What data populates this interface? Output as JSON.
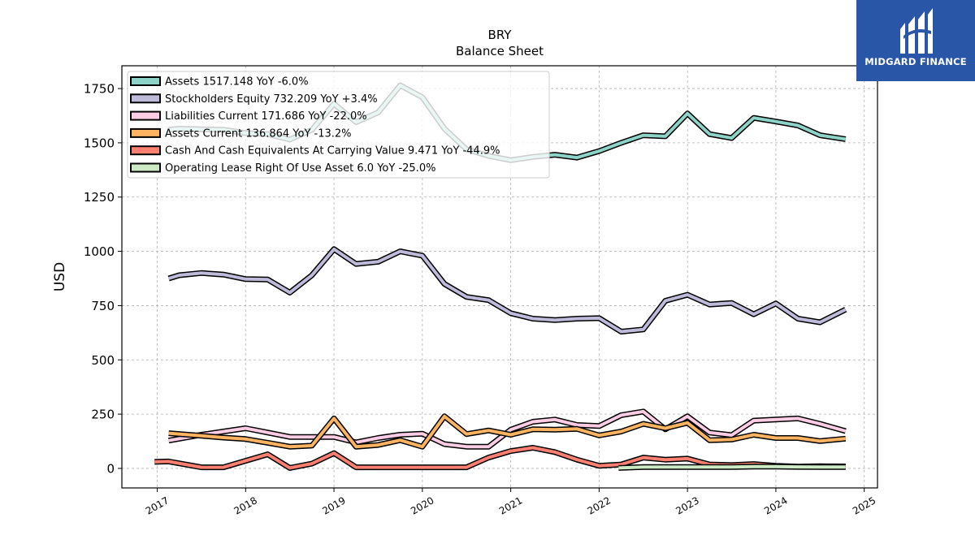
{
  "title": "BRY",
  "subtitle": "Balance  Sheet",
  "brand": {
    "name": "MIDGARD FINANCE",
    "color": "#2a56a8"
  },
  "chart_data": {
    "type": "line",
    "ylabel": "USD",
    "xlabel": "",
    "ylim": [
      -90,
      1855
    ],
    "xlim": [
      2016.6,
      2025.15
    ],
    "yticks": [
      0,
      250,
      500,
      750,
      1000,
      1250,
      1500,
      1750
    ],
    "xticks": [
      "2017",
      "2018",
      "2019",
      "2020",
      "2021",
      "2022",
      "2023",
      "2024",
      "2025"
    ],
    "grid": true,
    "legend_position": "top-left",
    "series": [
      {
        "name": "Assets",
        "legend": "Assets  1517.148 YoY -6.0%",
        "color": "#8dd3c7",
        "x": [
          2017.13,
          2017.25,
          2017.5,
          2017.75,
          2018.0,
          2018.25,
          2018.5,
          2018.75,
          2019.0,
          2019.25,
          2019.5,
          2019.75,
          2020.0,
          2020.25,
          2020.5,
          2020.75,
          2021.0,
          2021.25,
          2021.5,
          2021.75,
          2022.0,
          2022.25,
          2022.5,
          2022.75,
          2023.0,
          2023.25,
          2023.5,
          2023.75,
          2024.0,
          2024.25,
          2024.5,
          2024.79
        ],
        "y": [
          1560,
          1565,
          1562,
          1560,
          1545,
          1540,
          1515,
          1560,
          1680,
          1595,
          1640,
          1765,
          1710,
          1565,
          1470,
          1440,
          1420,
          1435,
          1445,
          1432,
          1462,
          1500,
          1535,
          1530,
          1635,
          1540,
          1522,
          1615,
          1598,
          1580,
          1535,
          1517
        ]
      },
      {
        "name": "Stockholders Equity",
        "legend": "Stockholders Equity  732.209 YoY +3.4%",
        "color": "#bebada",
        "x": [
          2017.13,
          2017.25,
          2017.5,
          2017.75,
          2018.0,
          2018.25,
          2018.5,
          2018.75,
          2019.0,
          2019.25,
          2019.5,
          2019.75,
          2020.0,
          2020.25,
          2020.5,
          2020.75,
          2021.0,
          2021.25,
          2021.5,
          2021.75,
          2022.0,
          2022.25,
          2022.5,
          2022.75,
          2023.0,
          2023.25,
          2023.5,
          2023.75,
          2024.0,
          2024.25,
          2024.5,
          2024.79
        ],
        "y": [
          875,
          890,
          900,
          893,
          872,
          870,
          810,
          890,
          1010,
          942,
          952,
          1000,
          980,
          850,
          790,
          775,
          715,
          690,
          683,
          690,
          692,
          630,
          640,
          772,
          800,
          755,
          762,
          710,
          760,
          690,
          673,
          732
        ]
      },
      {
        "name": "Liabilities Current",
        "legend": "Liabilities Current  171.686 YoY -22.0%",
        "color": "#fccde5",
        "x": [
          2017.13,
          2017.5,
          2017.75,
          2018.0,
          2018.25,
          2018.5,
          2018.75,
          2019.0,
          2019.25,
          2019.5,
          2019.75,
          2020.0,
          2020.25,
          2020.5,
          2020.75,
          2021.0,
          2021.25,
          2021.5,
          2021.75,
          2022.0,
          2022.25,
          2022.5,
          2022.75,
          2023.0,
          2023.25,
          2023.5,
          2023.75,
          2024.0,
          2024.25,
          2024.5,
          2024.79
        ],
        "y": [
          128,
          155,
          170,
          185,
          165,
          145,
          145,
          145,
          120,
          140,
          155,
          160,
          112,
          100,
          100,
          178,
          215,
          225,
          200,
          195,
          245,
          262,
          180,
          240,
          165,
          153,
          220,
          225,
          230,
          205,
          172
        ]
      },
      {
        "name": "Assets Current",
        "legend": "Assets Current  136.864 YoY -13.2%",
        "color": "#fdb462",
        "x": [
          2017.13,
          2017.5,
          2017.75,
          2018.0,
          2018.25,
          2018.5,
          2018.75,
          2019.0,
          2019.25,
          2019.5,
          2019.75,
          2020.0,
          2020.25,
          2020.5,
          2020.75,
          2021.0,
          2021.25,
          2021.5,
          2021.75,
          2022.0,
          2022.25,
          2022.5,
          2022.75,
          2023.0,
          2023.25,
          2023.5,
          2023.75,
          2024.0,
          2024.25,
          2024.5,
          2024.79
        ],
        "y": [
          162,
          150,
          142,
          135,
          118,
          100,
          105,
          230,
          100,
          108,
          130,
          100,
          240,
          158,
          175,
          155,
          180,
          178,
          182,
          152,
          170,
          205,
          185,
          210,
          130,
          133,
          155,
          140,
          140,
          126,
          137
        ]
      },
      {
        "name": "Cash And Cash Equivalents At Carrying Value",
        "legend": "Cash And Cash Equivalents At Carrying Value  9.471 YoY -44.9%",
        "color": "#fb8072",
        "x": [
          2016.97,
          2017.13,
          2017.5,
          2017.75,
          2018.0,
          2018.25,
          2018.5,
          2018.75,
          2019.0,
          2019.25,
          2019.5,
          2019.75,
          2020.0,
          2020.25,
          2020.5,
          2020.75,
          2021.0,
          2021.25,
          2021.5,
          2021.75,
          2022.0,
          2022.25,
          2022.5,
          2022.75,
          2023.0,
          2023.25,
          2023.5,
          2023.75,
          2024.0,
          2024.25,
          2024.5,
          2024.79
        ],
        "y": [
          30,
          32,
          5,
          5,
          35,
          65,
          2,
          22,
          70,
          5,
          5,
          5,
          5,
          5,
          5,
          50,
          80,
          95,
          75,
          40,
          12,
          18,
          50,
          40,
          45,
          18,
          15,
          20,
          12,
          8,
          10,
          9
        ]
      },
      {
        "name": "Operating Lease Right Of Use Asset",
        "legend": "Operating Lease Right Of Use Asset  6.0 YoY -25.0%",
        "color": "#ccebc5",
        "x": [
          2022.22,
          2022.5,
          2022.75,
          2023.0,
          2023.25,
          2023.5,
          2023.75,
          2024.0,
          2024.25,
          2024.5,
          2024.79
        ],
        "y": [
          2,
          6,
          6,
          6,
          6,
          6,
          8,
          8,
          7,
          6,
          6
        ]
      }
    ]
  }
}
